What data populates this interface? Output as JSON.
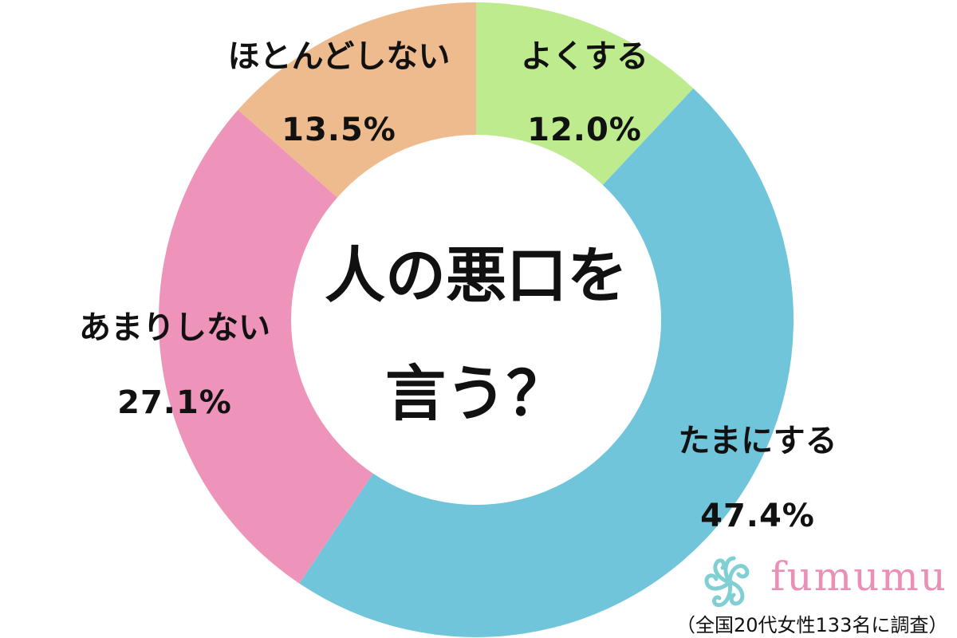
{
  "chart_data": {
    "type": "pie",
    "title_lines": [
      "人の悪口を",
      "言う？"
    ],
    "slices": [
      {
        "label": "よくする",
        "value": 12.0,
        "value_label": "12.0%",
        "color": "#bdeb8e"
      },
      {
        "label": "たまにする",
        "value": 47.4,
        "value_label": "47.4%",
        "color": "#71c5da"
      },
      {
        "label": "あまりしない",
        "value": 27.1,
        "value_label": "27.1%",
        "color": "#ee93b9"
      },
      {
        "label": "ほとんどしない",
        "value": 13.5,
        "value_label": "13.5%",
        "color": "#eebb8f"
      }
    ]
  },
  "brand": {
    "name": "fumumu",
    "logo_icon": "flower-swirl-icon",
    "logo_color": "#7fcfd3"
  },
  "footnote": "（全国20代女性133名に調査）"
}
